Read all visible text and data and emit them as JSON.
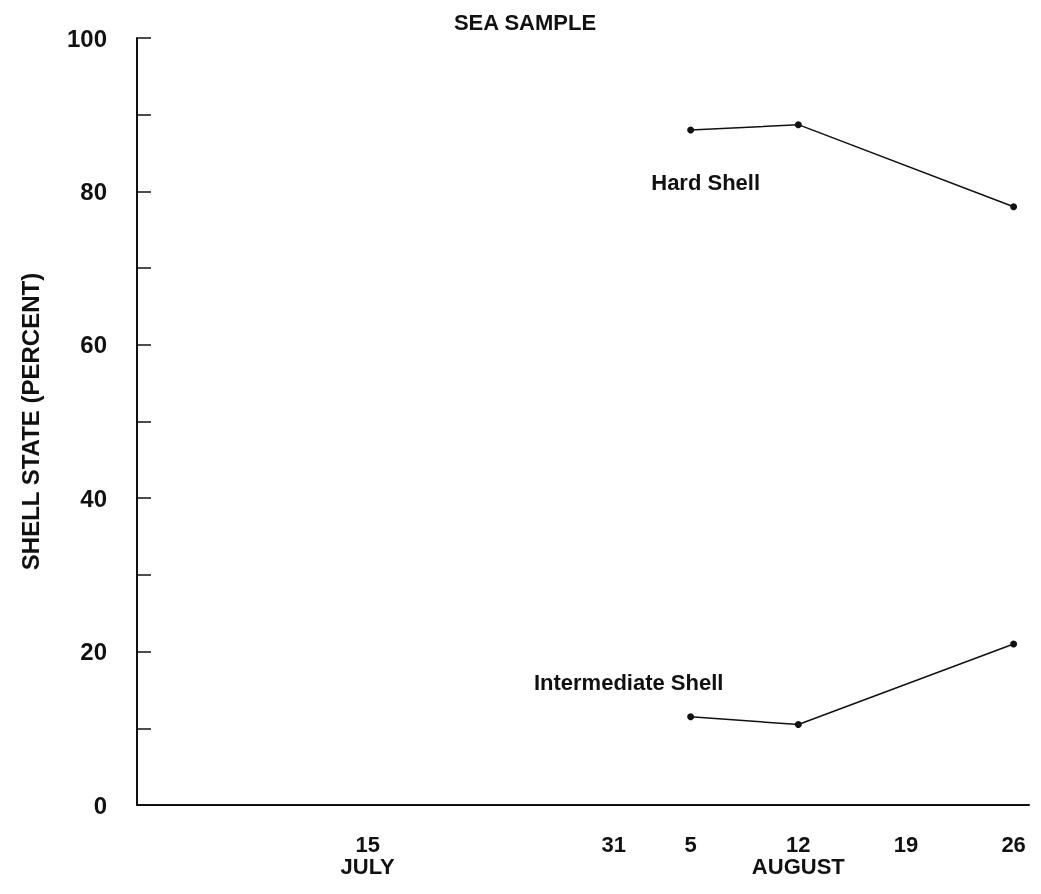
{
  "chart_data": {
    "type": "line",
    "title": "SEA SAMPLE",
    "ylabel": "SHELL STATE (PERCENT)",
    "series": [
      {
        "name": "Hard Shell",
        "color": "#111111",
        "x": [
          "--08-05",
          "--08-12",
          "--08-26"
        ],
        "values": [
          88,
          88.7,
          78
        ]
      },
      {
        "name": "Intermediate Shell",
        "color": "#111111",
        "x": [
          "--08-05",
          "--08-12",
          "--08-26"
        ],
        "values": [
          11.5,
          10.5,
          21
        ]
      }
    ],
    "xlim": [
      "--06-30",
      "--08-27"
    ],
    "xticks": [
      {
        "value": "--07-15",
        "label": "15\nJULY"
      },
      {
        "value": "--07-31",
        "label": "31"
      },
      {
        "value": "--08-05",
        "label": "5"
      },
      {
        "value": "--08-12",
        "label": "12\nAUGUST"
      },
      {
        "value": "--08-19",
        "label": "19"
      },
      {
        "value": "--08-26",
        "label": "26"
      }
    ],
    "ylim": [
      0,
      100
    ],
    "yticks": [
      0,
      {
        "value": 10,
        "label": null
      },
      20,
      {
        "value": 30,
        "label": null
      },
      40,
      {
        "value": 50,
        "label": null
      },
      60,
      {
        "value": 70,
        "label": null
      },
      80,
      {
        "value": 90,
        "label": null
      },
      100
    ],
    "grid": false,
    "legend": false,
    "marker": "circle",
    "line_style": "solid"
  }
}
